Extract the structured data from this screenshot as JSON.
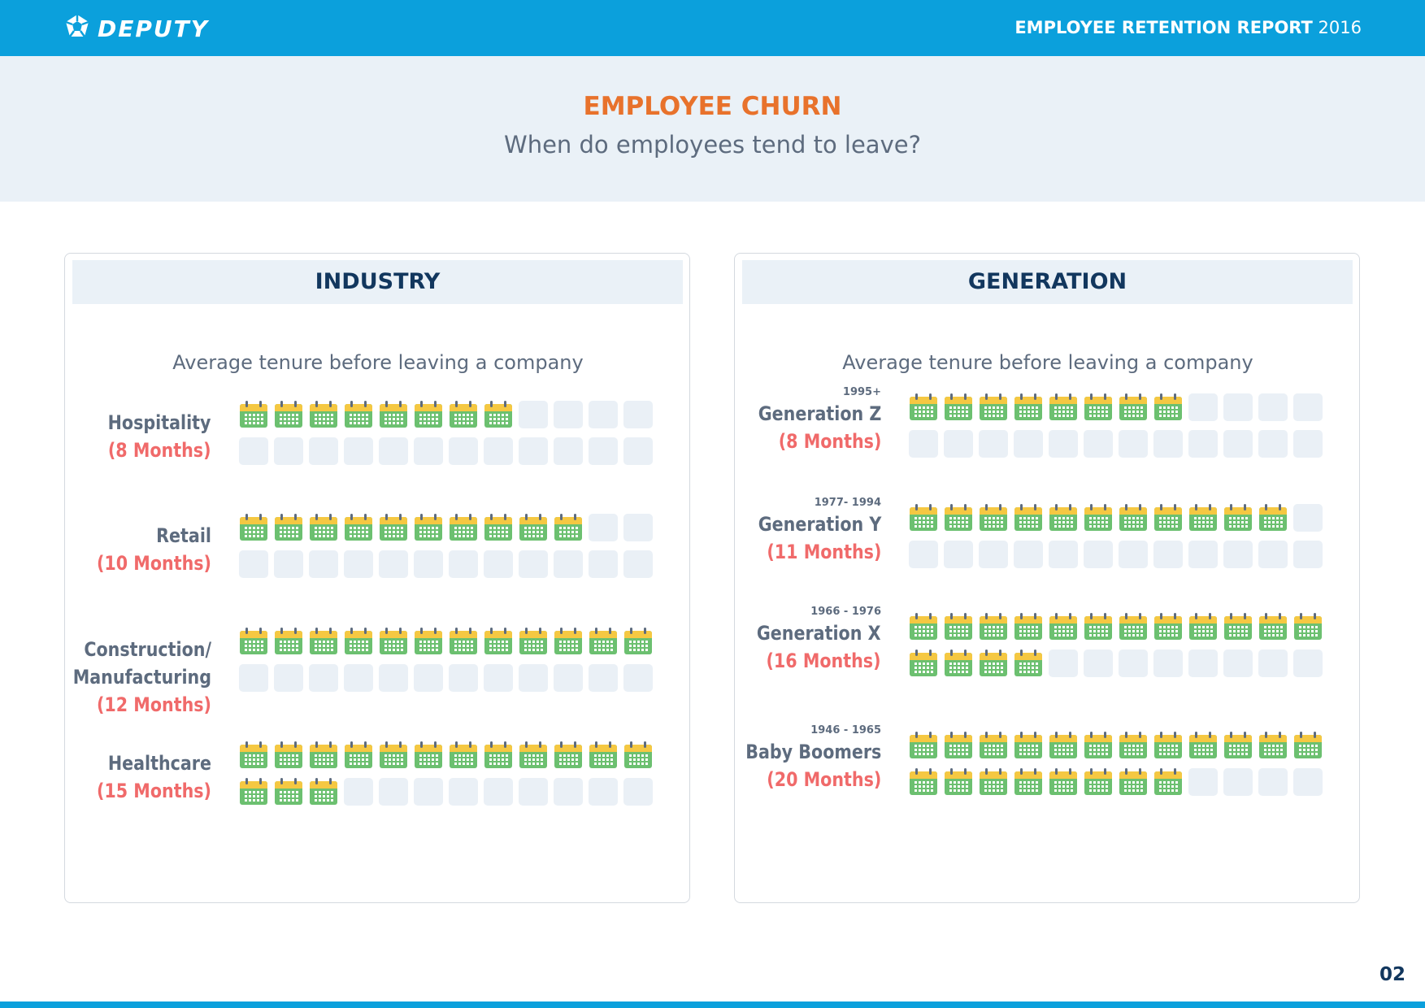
{
  "header": {
    "brand": "DEPUTY",
    "report_title_bold": "EMPLOYEE RETENTION REPORT",
    "report_year": "2016"
  },
  "hero": {
    "title": "EMPLOYEE CHURN",
    "subtitle": "When do employees tend to leave?"
  },
  "footer": {
    "page_number": "02"
  },
  "colors": {
    "brand_blue": "#0ba0dc",
    "accent_orange": "#e8722c",
    "value_red": "#f06a6a",
    "navy": "#12375e",
    "calendar_green": "#6cc070",
    "calendar_yellow": "#f5c842",
    "empty_cell": "#eaf0f6"
  },
  "icons": {
    "filled_cell": "calendar-icon",
    "logo": "deputy-logo-icon"
  },
  "chart_data": [
    {
      "type": "bar",
      "title": "INDUSTRY",
      "subtitle": "Average tenure before leaving a company",
      "unit": "Months",
      "cells_per_row": 12,
      "categories": [
        {
          "label": "Hospitality",
          "value": 8,
          "value_label": "(8 Months)"
        },
        {
          "label": "Retail",
          "value": 10,
          "value_label": "(10 Months)"
        },
        {
          "label": "Construction/ Manufacturing",
          "value": 12,
          "value_label": "(12 Months)"
        },
        {
          "label": "Healthcare",
          "value": 15,
          "value_label": "(15 Months)"
        }
      ]
    },
    {
      "type": "bar",
      "title": "GENERATION",
      "subtitle": "Average tenure before leaving a company",
      "unit": "Months",
      "cells_per_row": 12,
      "categories": [
        {
          "years": "1995+",
          "label": "Generation Z",
          "value": 8,
          "value_label": "(8 Months)"
        },
        {
          "years": "1977- 1994",
          "label": "Generation  Y",
          "value": 11,
          "value_label": "(11 Months)"
        },
        {
          "years": "1966 - 1976",
          "label": "Generation X",
          "value": 16,
          "value_label": "(16 Months)"
        },
        {
          "years": "1946 - 1965",
          "label": "Baby Boomers",
          "value": 20,
          "value_label": "(20 Months)"
        }
      ]
    }
  ]
}
